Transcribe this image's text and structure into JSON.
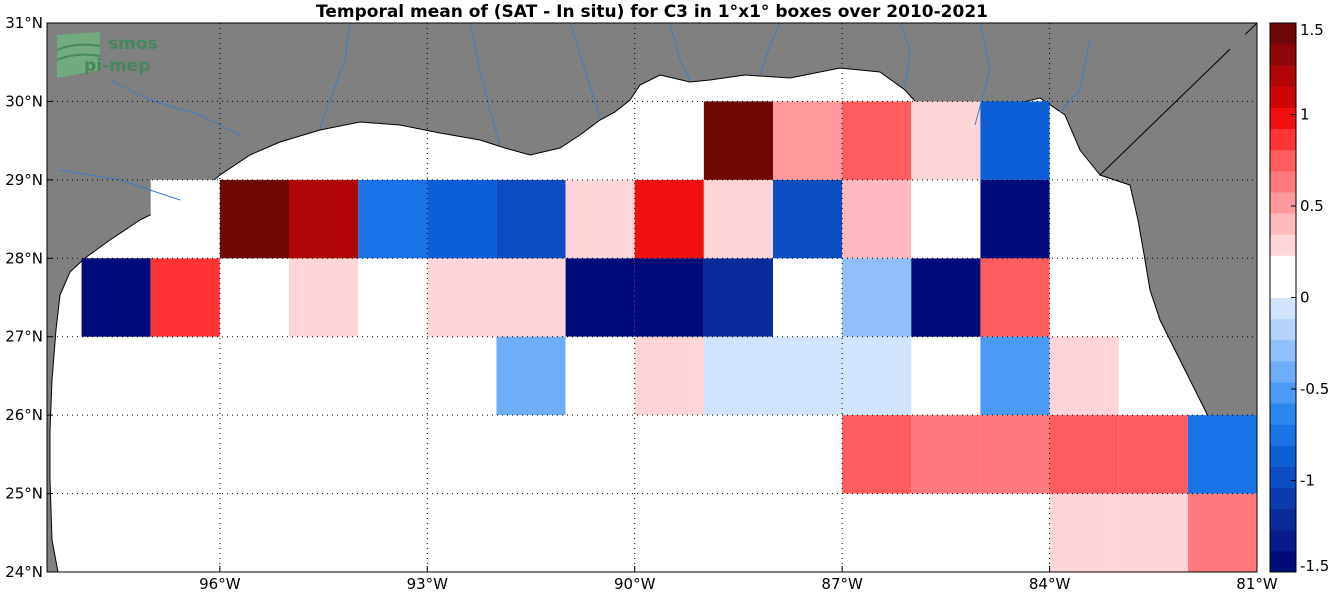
{
  "title": "Temporal mean of (SAT - In situ) for C3 in 1°x1° boxes over 2010-2021",
  "logo": {
    "line1": "smos",
    "line2": "pi-mep"
  },
  "colors": {
    "land": "#808080",
    "ocean": "#ffffff",
    "coast": "#000000",
    "river": "#3a7fc4"
  },
  "chart_data": {
    "type": "heatmap",
    "title": "Temporal mean of (SAT - In situ) for C3 in 1°x1° boxes over 2010-2021",
    "x_range": [
      -98.5,
      -81.0
    ],
    "y_range": [
      24.0,
      31.0
    ],
    "x_ticks": [
      {
        "value": -96,
        "label": "96°W"
      },
      {
        "value": -93,
        "label": "93°W"
      },
      {
        "value": -90,
        "label": "90°W"
      },
      {
        "value": -87,
        "label": "87°W"
      },
      {
        "value": -84,
        "label": "84°W"
      },
      {
        "value": -81,
        "label": "81°W"
      }
    ],
    "y_ticks": [
      {
        "value": 24,
        "label": "24°N"
      },
      {
        "value": 25,
        "label": "25°N"
      },
      {
        "value": 26,
        "label": "26°N"
      },
      {
        "value": 27,
        "label": "27°N"
      },
      {
        "value": 28,
        "label": "28°N"
      },
      {
        "value": 29,
        "label": "29°N"
      },
      {
        "value": 30,
        "label": "30°N"
      },
      {
        "value": 31,
        "label": "31°N"
      }
    ],
    "grid": "dotted",
    "colorbar": {
      "range": [
        -1.5,
        1.5
      ],
      "ticks": [
        {
          "value": 1.5,
          "label": "1.5"
        },
        {
          "value": 1,
          "label": "1"
        },
        {
          "value": 0.5,
          "label": "0.5"
        },
        {
          "value": 0,
          "label": "0"
        },
        {
          "value": -0.5,
          "label": "-0.5"
        },
        {
          "value": -1,
          "label": "-1"
        },
        {
          "value": -1.5,
          "label": "-1.5"
        }
      ],
      "colors": [
        "#000c7a",
        "#061c8a",
        "#0a2b9c",
        "#0c3bb0",
        "#0c4dc4",
        "#0d5fd6",
        "#1973e6",
        "#2b87f0",
        "#4c9af7",
        "#6eaef9",
        "#90c0fb",
        "#b3d3fc",
        "#d2e4fd",
        "#ffffff",
        "#ffffff",
        "#ffd5d8",
        "#ffb8bb",
        "#ff999b",
        "#ff7a7c",
        "#ff5c5e",
        "#ff3535",
        "#f01010",
        "#d00505",
        "#b00505",
        "#8f0606",
        "#700707"
      ]
    },
    "cells": [
      {
        "lon": -97.5,
        "lat": 27.5,
        "value": -1.5
      },
      {
        "lon": -96.5,
        "lat": 27.5,
        "value": 0.9
      },
      {
        "lon": -95.5,
        "lat": 27.5,
        "value": 0.0
      },
      {
        "lon": -94.5,
        "lat": 27.5,
        "value": 0.3
      },
      {
        "lon": -93.5,
        "lat": 27.5,
        "value": 0.15
      },
      {
        "lon": -92.5,
        "lat": 27.5,
        "value": 0.25
      },
      {
        "lon": -91.5,
        "lat": 27.5,
        "value": 0.25
      },
      {
        "lon": -90.5,
        "lat": 27.5,
        "value": -1.5
      },
      {
        "lon": -89.5,
        "lat": 27.5,
        "value": -1.5
      },
      {
        "lon": -88.5,
        "lat": 27.5,
        "value": -1.25
      },
      {
        "lon": -87.5,
        "lat": 27.5,
        "value": 0.15
      },
      {
        "lon": -86.5,
        "lat": 27.5,
        "value": -0.25
      },
      {
        "lon": -85.5,
        "lat": 27.5,
        "value": -1.5
      },
      {
        "lon": -84.5,
        "lat": 27.5,
        "value": 0.75
      },
      {
        "lon": -96.5,
        "lat": 26.5,
        "value": 0.15
      },
      {
        "lon": -95.5,
        "lat": 26.5,
        "value": 0.15
      },
      {
        "lon": -94.5,
        "lat": 26.5,
        "value": 0.15
      },
      {
        "lon": -91.5,
        "lat": 26.5,
        "value": -0.35
      },
      {
        "lon": -90.5,
        "lat": 26.5,
        "value": 0.15
      },
      {
        "lon": -89.5,
        "lat": 26.5,
        "value": 0.3
      },
      {
        "lon": -88.5,
        "lat": 26.5,
        "value": -0.1
      },
      {
        "lon": -87.5,
        "lat": 26.5,
        "value": -0.1
      },
      {
        "lon": -86.5,
        "lat": 26.5,
        "value": -0.1
      },
      {
        "lon": -84.5,
        "lat": 26.5,
        "value": -0.55
      },
      {
        "lon": -83.5,
        "lat": 26.5,
        "value": 0.3
      },
      {
        "lon": -89.5,
        "lat": 25.5,
        "value": 0.15
      },
      {
        "lon": -86.5,
        "lat": 25.5,
        "value": 0.75
      },
      {
        "lon": -85.5,
        "lat": 25.5,
        "value": 0.6
      },
      {
        "lon": -84.5,
        "lat": 25.5,
        "value": 0.6
      },
      {
        "lon": -83.5,
        "lat": 25.5,
        "value": 0.75
      },
      {
        "lon": -82.5,
        "lat": 25.5,
        "value": 0.75
      },
      {
        "lon": -83.5,
        "lat": 24.5,
        "value": 0.3
      },
      {
        "lon": -82.5,
        "lat": 24.5,
        "value": 0.3
      },
      {
        "lon": -81.5,
        "lat": 24.5,
        "value": 0.6
      }
    ],
    "coastal_cells": [
      {
        "lon": -96.5,
        "lat": 28.5,
        "value": 0.0
      },
      {
        "lon": -95.5,
        "lat": 28.5,
        "value": 1.4
      },
      {
        "lon": -94.5,
        "lat": 28.5,
        "value": 1.2
      },
      {
        "lon": -93.5,
        "lat": 28.5,
        "value": -0.75
      },
      {
        "lon": -92.5,
        "lat": 28.5,
        "value": -0.9
      },
      {
        "lon": -91.5,
        "lat": 28.5,
        "value": -1.0
      },
      {
        "lon": -90.5,
        "lat": 28.5,
        "value": 0.3
      },
      {
        "lon": -89.5,
        "lat": 28.5,
        "value": 1.0
      },
      {
        "lon": -88.5,
        "lat": 28.5,
        "value": 0.3
      },
      {
        "lon": -87.5,
        "lat": 28.5,
        "value": -1.0
      },
      {
        "lon": -86.5,
        "lat": 28.5,
        "value": 0.45
      },
      {
        "lon": -85.5,
        "lat": 28.5,
        "value": 0.15
      },
      {
        "lon": -84.5,
        "lat": 28.5,
        "value": -1.5
      },
      {
        "lon": -88.5,
        "lat": 29.5,
        "value": 1.45
      },
      {
        "lon": -87.5,
        "lat": 29.5,
        "value": 0.55
      },
      {
        "lon": -86.5,
        "lat": 29.5,
        "value": 0.7
      },
      {
        "lon": -85.5,
        "lat": 29.5,
        "value": 0.3
      },
      {
        "lon": -84.5,
        "lat": 29.5,
        "value": -0.9
      },
      {
        "lon": -81.5,
        "lat": 25.5,
        "value": -0.8
      }
    ]
  }
}
